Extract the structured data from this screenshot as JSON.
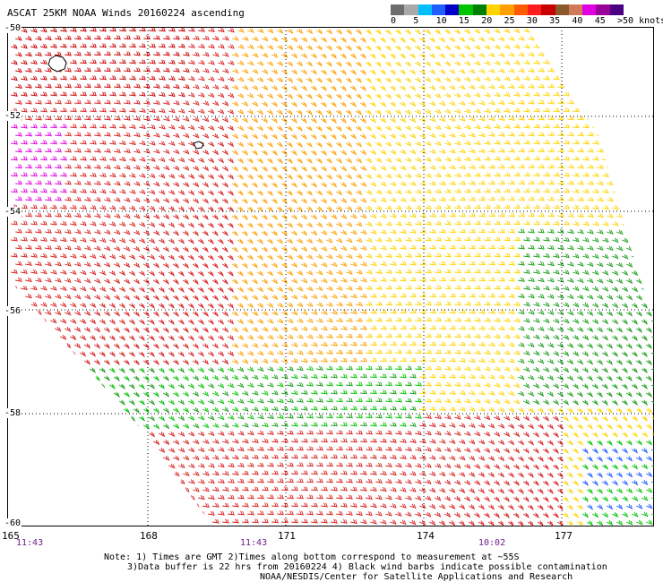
{
  "title": "ASCAT 25KM NOAA Winds 20160224 ascending",
  "scale": {
    "colors": [
      "#6d6d6d",
      "#a9a9a9",
      "#00bfff",
      "#1f5fff",
      "#0000c8",
      "#00c400",
      "#008000",
      "#ffd400",
      "#ffa000",
      "#ff5a00",
      "#ff1e1e",
      "#c80000",
      "#8b5a2b",
      "#d17a5a",
      "#e000e0",
      "#9a009a",
      "#4b0082"
    ],
    "labels": [
      "0",
      "5",
      "10",
      "15",
      "20",
      "25",
      "30",
      "35",
      "40",
      "45",
      ">50 knots"
    ]
  },
  "lon_labels": [
    "165",
    "168",
    "171",
    "174",
    "177"
  ],
  "lat_labels": [
    "-50",
    "-52",
    "-54",
    "-56",
    "-58",
    "-60"
  ],
  "times": [
    "11:43",
    "11:43",
    "10:02"
  ],
  "notes": [
    "Note: 1) Times are GMT 2)Times along bottom correspond to measurement at ~55S",
    "3)Data buffer is 22 hrs from 20160224 4) Black wind barbs indicate possible contamination",
    "NOAA/NESDIS/Center for Satellite Applications and Research"
  ]
}
